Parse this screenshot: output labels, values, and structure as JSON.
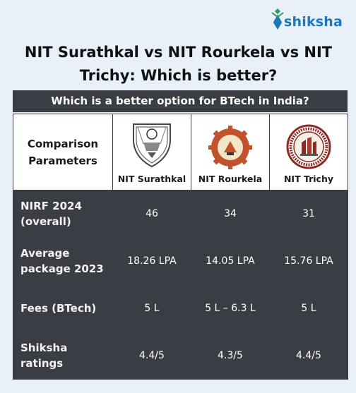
{
  "brand": {
    "name": "shiksha",
    "color": "#1e75b8"
  },
  "title": "NIT Surathkal vs NIT Rourkela vs NIT Trichy: Which is better?",
  "subtitle": "Which is a better option for BTech in India?",
  "table": {
    "param_header": "Comparison Parameters",
    "columns": [
      {
        "label": "NIT Surathkal",
        "logo": "nit-surathkal-emblem-icon"
      },
      {
        "label": "NIT Rourkela",
        "logo": "nit-rourkela-emblem-icon"
      },
      {
        "label": "NIT Trichy",
        "logo": "nit-trichy-emblem-icon"
      }
    ],
    "rows": [
      {
        "label": "NIRF 2024 (overall)",
        "values": [
          "46",
          "34",
          "31"
        ]
      },
      {
        "label": "Average package 2023",
        "values": [
          "18.26 LPA",
          "14.05 LPA",
          "15.76 LPA"
        ]
      },
      {
        "label": "Fees (BTech)",
        "values": [
          "5 L",
          "5 L – 6.3 L",
          "5 L"
        ]
      },
      {
        "label": "Shiksha ratings",
        "values": [
          "4.4/5",
          "4.3/5",
          "4.4/5"
        ]
      }
    ]
  },
  "colors": {
    "header_bar": "#3a3d43",
    "background": "#e8f1f9"
  }
}
